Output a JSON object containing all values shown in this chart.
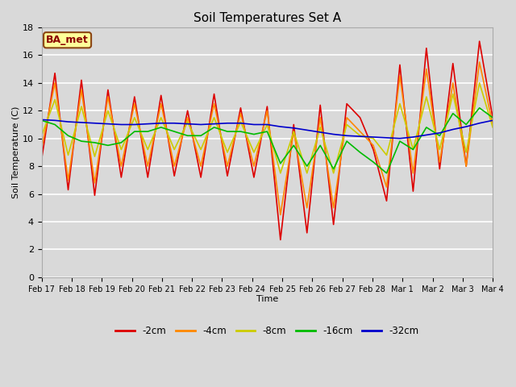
{
  "title": "Soil Temperatures Set A",
  "xlabel": "Time",
  "ylabel": "Soil Temperature (C)",
  "annotation": "BA_met",
  "ylim": [
    0,
    18
  ],
  "figsize": [
    6.4,
    4.8
  ],
  "dpi": 100,
  "series": {
    "-2cm": {
      "color": "#dd0000",
      "lw": 1.2
    },
    "-4cm": {
      "color": "#ff8800",
      "lw": 1.2
    },
    "-8cm": {
      "color": "#cccc00",
      "lw": 1.2
    },
    "-16cm": {
      "color": "#00bb00",
      "lw": 1.2
    },
    "-32cm": {
      "color": "#0000cc",
      "lw": 1.2
    }
  },
  "xticks": [
    "Feb 17",
    "Feb 18",
    "Feb 19",
    "Feb 20",
    "Feb 21",
    "Feb 22",
    "Feb 23",
    "Feb 24",
    "Feb 25",
    "Feb 26",
    "Feb 27",
    "Feb 28",
    "Mar 1",
    "Mar 2",
    "Mar 3",
    "Mar 4"
  ],
  "yticks": [
    0,
    2,
    4,
    6,
    8,
    10,
    12,
    14,
    16,
    18
  ],
  "data_2cm": [
    8.5,
    14.7,
    6.3,
    14.2,
    5.9,
    13.5,
    7.2,
    13.0,
    7.2,
    13.1,
    7.3,
    12.0,
    7.2,
    13.2,
    7.3,
    12.2,
    7.2,
    12.3,
    2.7,
    11.0,
    3.2,
    12.4,
    3.8,
    12.5,
    11.5,
    9.2,
    5.5,
    15.3,
    6.2,
    16.5,
    7.8,
    15.4,
    8.0,
    17.0,
    11.5
  ],
  "data_4cm": [
    9.3,
    14.0,
    7.0,
    13.5,
    6.8,
    13.0,
    8.0,
    12.5,
    8.0,
    12.5,
    8.0,
    11.5,
    8.0,
    12.5,
    8.0,
    11.8,
    8.0,
    12.0,
    4.5,
    10.5,
    5.0,
    11.5,
    5.0,
    11.5,
    10.5,
    9.5,
    6.5,
    14.5,
    7.5,
    15.0,
    8.3,
    14.0,
    8.0,
    15.5,
    11.0
  ],
  "data_8cm": [
    10.2,
    12.8,
    8.8,
    12.3,
    8.7,
    12.0,
    9.2,
    11.5,
    9.2,
    11.5,
    9.2,
    11.2,
    9.2,
    11.5,
    9.0,
    11.2,
    9.0,
    11.0,
    7.5,
    10.5,
    7.5,
    10.8,
    7.5,
    11.0,
    10.2,
    10.0,
    8.8,
    12.5,
    9.2,
    13.0,
    9.2,
    13.2,
    9.0,
    14.0,
    10.8
  ],
  "data_16cm": [
    11.3,
    11.0,
    10.2,
    9.8,
    9.7,
    9.5,
    9.7,
    10.5,
    10.5,
    10.8,
    10.5,
    10.2,
    10.2,
    10.8,
    10.5,
    10.5,
    10.3,
    10.5,
    8.2,
    9.5,
    8.0,
    9.5,
    7.8,
    9.8,
    9.0,
    8.3,
    7.5,
    9.8,
    9.2,
    10.8,
    10.2,
    11.8,
    11.0,
    12.2,
    11.5
  ],
  "data_32cm": [
    11.35,
    11.3,
    11.2,
    11.15,
    11.1,
    11.05,
    11.0,
    11.0,
    11.05,
    11.1,
    11.1,
    11.05,
    11.0,
    11.05,
    11.1,
    11.1,
    11.0,
    11.0,
    10.85,
    10.75,
    10.6,
    10.45,
    10.3,
    10.2,
    10.15,
    10.1,
    10.05,
    10.0,
    10.1,
    10.25,
    10.4,
    10.65,
    10.85,
    11.1,
    11.3
  ]
}
